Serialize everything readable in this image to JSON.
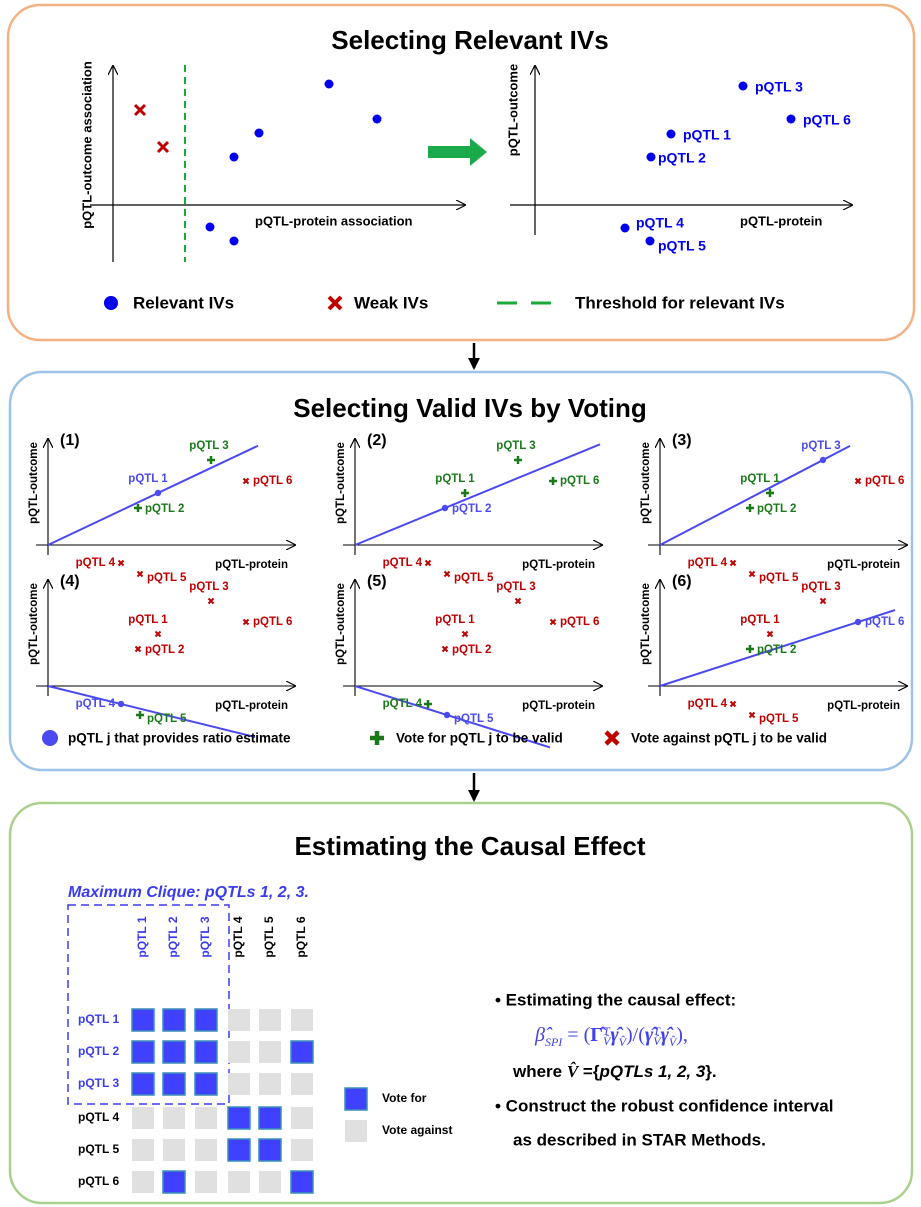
{
  "panel1": {
    "title": "Selecting Relevant IVs",
    "left_plot": {
      "y_label": "pQTL-outcome association",
      "x_label": "pQTL-protein association"
    },
    "right_plot": {
      "y_label": "pQTL-outcome",
      "x_label": "pQTL-protein",
      "points": [
        "pQTL 3",
        "pQTL 1",
        "pQTL 6",
        "pQTL 2",
        "pQTL 4",
        "pQTL 5"
      ]
    },
    "legend": [
      "Relevant IVs",
      "Weak IVs",
      "Threshold for relevant IVs"
    ]
  },
  "panel2": {
    "title": "Selecting Valid IVs by Voting",
    "plots": [
      {
        "label": "(1)",
        "y_label": "pQTL-outcome",
        "x_label": "pQTL-protein",
        "points": [
          "pQTL 1",
          "pQTL 2",
          "pQTL 3",
          "pQTL 4",
          "pQTL 5",
          "pQTL 6"
        ]
      },
      {
        "label": "(2)",
        "y_label": "pQTL-outcome",
        "x_label": "pQTL-protein",
        "points": [
          "pQTL 1",
          "pQTL 2",
          "pQTL 3",
          "pQTL 4",
          "pQTL 5",
          "pQTL 6"
        ]
      },
      {
        "label": "(3)",
        "y_label": "pQTL-outcome",
        "x_label": "pQTL-protein",
        "points": [
          "pQTL 1",
          "pQTL 2",
          "pQTL 3",
          "pQTL 4",
          "pQTL 5",
          "pQTL 6"
        ]
      },
      {
        "label": "(4)",
        "y_label": "pQTL-outcome",
        "x_label": "pQTL-protein",
        "points": [
          "pQTL 1",
          "pQTL 2",
          "pQTL 3",
          "pQTL 4",
          "pQTL 5",
          "pQTL 6"
        ]
      },
      {
        "label": "(5)",
        "y_label": "pQTL-outcome",
        "x_label": "pQTL-protein",
        "points": [
          "pQTL 1",
          "pQTL 2",
          "pQTL 3",
          "pQTL 4",
          "pQTL 5",
          "pQTL 6"
        ]
      },
      {
        "label": "(6)",
        "y_label": "pQTL-outcome",
        "x_label": "pQTL-protein",
        "points": [
          "pQTL 1",
          "pQTL 2",
          "pQTL 3",
          "pQTL 4",
          "pQTL 5",
          "pQTL 6"
        ]
      }
    ],
    "legend": [
      "pQTL j that provides ratio estimate",
      "Vote for pQTL j to be valid",
      "Vote against pQTL j to be valid"
    ]
  },
  "panel3": {
    "title": "Estimating the Causal Effect",
    "clique_label": "Maximum Clique: pQTLs 1, 2, 3.",
    "matrix": {
      "columns": [
        "pQTL 1",
        "pQTL 2",
        "pQTL 3",
        "pQTL 4",
        "pQTL 5",
        "pQTL 6"
      ],
      "rows": [
        "pQTL 1",
        "pQTL 2",
        "pQTL 3",
        "pQTL 4",
        "pQTL 5",
        "pQTL 6"
      ],
      "cells": [
        [
          1,
          1,
          1,
          0,
          0,
          0
        ],
        [
          1,
          1,
          1,
          0,
          0,
          1
        ],
        [
          1,
          1,
          1,
          0,
          0,
          0
        ],
        [
          0,
          0,
          0,
          1,
          1,
          0
        ],
        [
          0,
          0,
          0,
          1,
          1,
          0
        ],
        [
          0,
          1,
          0,
          0,
          0,
          1
        ]
      ]
    },
    "matrix_legend": [
      "Vote for",
      "Vote against"
    ],
    "bullet1": "• Estimating the causal effect:",
    "formula": [
      "β̂",
      "SPI",
      " = (",
      "Γ̂",
      "T",
      "V̂",
      "γ̂",
      "V̂",
      ")/(",
      "γ̂",
      "T",
      "V̂",
      "γ̂",
      "V̂",
      "),"
    ],
    "where": [
      "where ",
      "V̂",
      " ={",
      "pQTLs 1, 2, 3",
      "}."
    ],
    "bullet2": "• Construct the robust confidence interval",
    "bullet2_cont": "as described in STAR Methods."
  }
}
